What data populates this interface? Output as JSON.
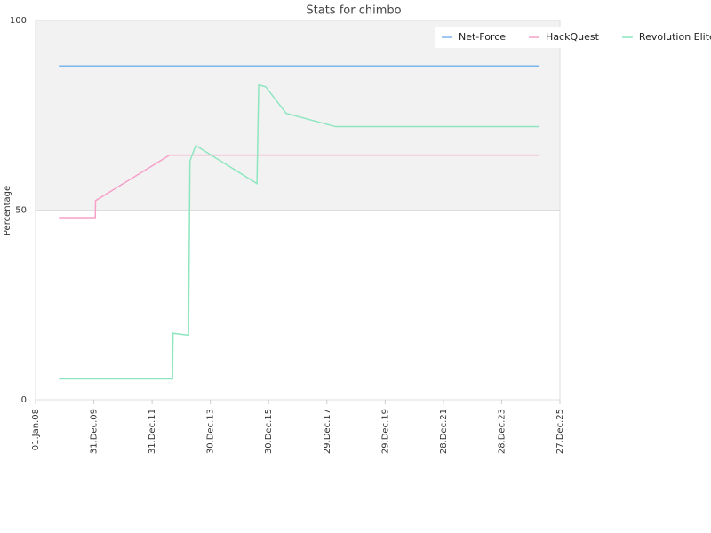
{
  "chart_data": {
    "type": "line",
    "title": "Stats for chimbo",
    "y_label": "Percentage",
    "xlim": [
      2008,
      2026
    ],
    "ylim": [
      0,
      100
    ],
    "yticks": [
      0,
      50,
      100
    ],
    "xticks": [
      {
        "value": 2008,
        "label": "01.Jan.08"
      },
      {
        "value": 2010,
        "label": "31.Dec.09"
      },
      {
        "value": 2012,
        "label": "31.Dec.11"
      },
      {
        "value": 2014,
        "label": "30.Dec.13"
      },
      {
        "value": 2016,
        "label": "30.Dec.15"
      },
      {
        "value": 2018,
        "label": "29.Dec.17"
      },
      {
        "value": 2020,
        "label": "29.Dec.19"
      },
      {
        "value": 2022,
        "label": "28.Dec.21"
      },
      {
        "value": 2024,
        "label": "28.Dec.23"
      },
      {
        "value": 2026,
        "label": "27.Dec.25"
      }
    ],
    "legend": "top-right",
    "series": [
      {
        "name": "Net-Force",
        "color": "#7cb5ec",
        "x": [
          2008.8,
          2025.3
        ],
        "values": [
          88,
          88
        ]
      },
      {
        "name": "HackQuest",
        "color": "#f7a1c8",
        "x": [
          2008.8,
          2010.05,
          2010.06,
          2012.6,
          2025.3
        ],
        "values": [
          48,
          48,
          52.5,
          64.5,
          64.5
        ]
      },
      {
        "name": "Revolution Elite",
        "color": "#8ee6c0",
        "x": [
          2008.8,
          2012.7,
          2012.72,
          2013.25,
          2013.3,
          2013.5,
          2015.6,
          2015.66,
          2015.9,
          2016.6,
          2018.3,
          2025.3
        ],
        "values": [
          5.5,
          5.5,
          17.5,
          17,
          63,
          67,
          57,
          83,
          82.5,
          75.5,
          72,
          72
        ]
      }
    ]
  }
}
